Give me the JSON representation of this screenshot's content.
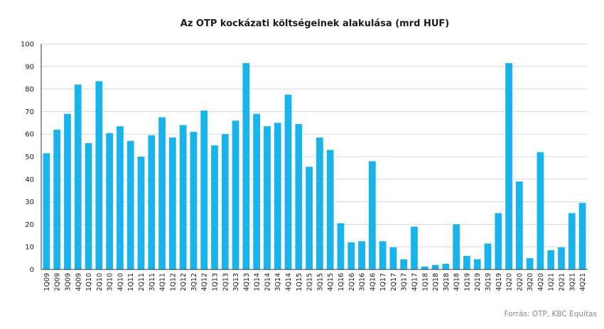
{
  "chart_data": {
    "type": "bar",
    "title": "Az OTP kockázati költségeinek alakulása (mrd HUF)",
    "source": "Forrás: OTP, KBC Equitas",
    "ylim": [
      0,
      100
    ],
    "yticks": [
      0,
      10,
      20,
      30,
      40,
      50,
      60,
      70,
      80,
      90,
      100
    ],
    "grid": true,
    "legend": "none",
    "bar_color": "#19b4ec",
    "categories": [
      "1Q09",
      "2Q09",
      "3Q09",
      "4Q09",
      "1Q10",
      "2Q10",
      "3Q10",
      "4Q10",
      "1Q11",
      "2Q11",
      "3Q11",
      "4Q11",
      "1Q12",
      "2Q12",
      "3Q12",
      "4Q12",
      "1Q13",
      "2Q13",
      "3Q13",
      "4Q13",
      "1Q14",
      "2Q14",
      "3Q14",
      "4Q14",
      "1Q15",
      "2Q15",
      "3Q15",
      "4Q15",
      "1Q16",
      "2Q16",
      "3Q16",
      "4Q16",
      "1Q17",
      "2Q17",
      "3Q17",
      "4Q17",
      "1Q18",
      "2Q18",
      "3Q18",
      "4Q18",
      "1Q19",
      "2Q19",
      "3Q19",
      "4Q19",
      "1Q20",
      "2Q20",
      "3Q20",
      "4Q20",
      "1Q21",
      "2Q21",
      "3Q21",
      "4Q21"
    ],
    "values": [
      51.5,
      62,
      69,
      82,
      56,
      83.5,
      60.5,
      63.5,
      57,
      50,
      59.5,
      67.5,
      58.5,
      64,
      61,
      70.5,
      55,
      60,
      66,
      91.5,
      69,
      63.5,
      65,
      77.5,
      64.5,
      45.5,
      58.5,
      53,
      20.5,
      12,
      12.5,
      48,
      12.5,
      9.8,
      4.5,
      19,
      1.3,
      2,
      2.5,
      20,
      6,
      4.5,
      11.5,
      25,
      91.5,
      39,
      5,
      52,
      8.5,
      9.8,
      25,
      29.5
    ]
  }
}
